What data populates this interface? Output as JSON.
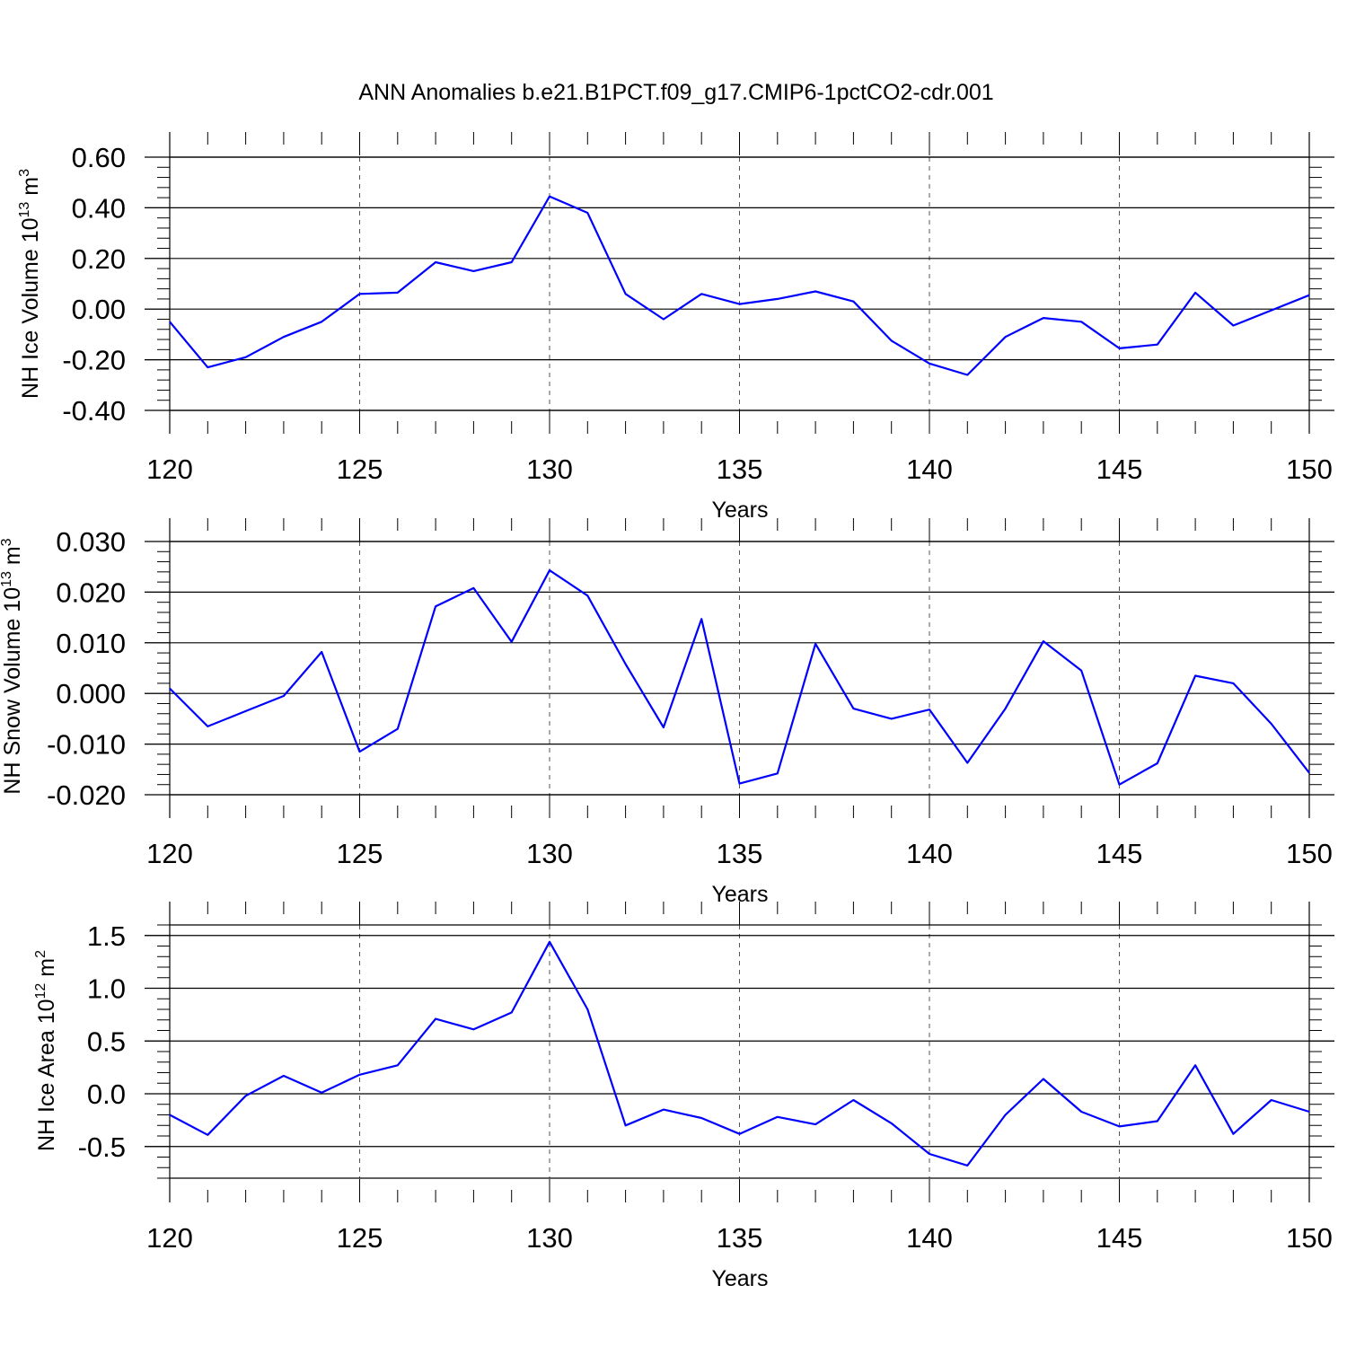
{
  "title": "ANN Anomalies b.e21.B1PCT.f09_g17.CMIP6-1pctCO2-cdr.001",
  "colors": {
    "line": "#0000ff",
    "axis": "#000000",
    "grid": "#555555"
  },
  "chart_data": [
    {
      "type": "line",
      "ylabel_text": "NH Ice Volume 10",
      "ylabel_exp": "13",
      "ylabel_unit": "m",
      "ylabel_unit_exp": "3",
      "xlabel": "Years",
      "xlim": [
        120,
        150
      ],
      "ylim": [
        -0.4,
        0.6
      ],
      "xticks": [
        "120",
        "125",
        "130",
        "135",
        "140",
        "145",
        "150"
      ],
      "yticks": [
        {
          "value": 0.6,
          "label": "0.60"
        },
        {
          "value": 0.4,
          "label": "0.40"
        },
        {
          "value": 0.2,
          "label": "0.20"
        },
        {
          "value": 0.0,
          "label": "0.00"
        },
        {
          "value": -0.2,
          "label": "-0.20"
        },
        {
          "value": -0.4,
          "label": "-0.40"
        }
      ],
      "vgrid": [
        125,
        130,
        135,
        140,
        145
      ],
      "x": [
        120,
        121,
        122,
        123,
        124,
        125,
        126,
        127,
        128,
        129,
        130,
        131,
        132,
        133,
        134,
        135,
        136,
        137,
        138,
        139,
        140,
        141,
        142,
        143,
        144,
        145,
        146,
        147,
        148,
        149,
        150
      ],
      "y": [
        -0.05,
        -0.23,
        -0.19,
        -0.11,
        -0.05,
        0.06,
        0.065,
        0.185,
        0.15,
        0.185,
        0.445,
        0.38,
        0.06,
        -0.04,
        0.06,
        0.02,
        0.04,
        0.07,
        0.03,
        -0.125,
        -0.215,
        -0.26,
        -0.11,
        -0.035,
        -0.05,
        -0.155,
        -0.14,
        0.065,
        -0.065,
        -0.005,
        0.055
      ]
    },
    {
      "type": "line",
      "ylabel_text": "NH Snow Volume 10",
      "ylabel_exp": "13",
      "ylabel_unit": "m",
      "ylabel_unit_exp": "3",
      "xlabel": "Years",
      "xlim": [
        120,
        150
      ],
      "ylim": [
        -0.02,
        0.03
      ],
      "xticks": [
        "120",
        "125",
        "130",
        "135",
        "140",
        "145",
        "150"
      ],
      "yticks": [
        {
          "value": 0.03,
          "label": "0.030"
        },
        {
          "value": 0.02,
          "label": "0.020"
        },
        {
          "value": 0.01,
          "label": "0.010"
        },
        {
          "value": 0.0,
          "label": "0.000"
        },
        {
          "value": -0.01,
          "label": "-0.010"
        },
        {
          "value": -0.02,
          "label": "-0.020"
        }
      ],
      "vgrid": [
        125,
        130,
        135,
        140,
        145
      ],
      "x": [
        120,
        121,
        122,
        123,
        124,
        125,
        126,
        127,
        128,
        129,
        130,
        131,
        132,
        133,
        134,
        135,
        136,
        137,
        138,
        139,
        140,
        141,
        142,
        143,
        144,
        145,
        146,
        147,
        148,
        149,
        150
      ],
      "y": [
        0.001,
        -0.0065,
        -0.0035,
        -0.0005,
        0.0082,
        -0.0115,
        -0.007,
        0.0172,
        0.0208,
        0.0102,
        0.0243,
        0.0193,
        0.0058,
        -0.0067,
        0.0147,
        -0.0178,
        -0.0158,
        0.0098,
        -0.003,
        -0.005,
        -0.0032,
        -0.0137,
        -0.003,
        0.0103,
        0.0045,
        -0.018,
        -0.0138,
        0.0035,
        0.002,
        -0.006,
        -0.0157
      ]
    },
    {
      "type": "line",
      "ylabel_text": "NH Ice Area 10",
      "ylabel_exp": "12",
      "ylabel_unit": "m",
      "ylabel_unit_exp": "2",
      "xlabel": "Years",
      "xlim": [
        120,
        150
      ],
      "ylim": [
        -0.8,
        1.6
      ],
      "xticks": [
        "120",
        "125",
        "130",
        "135",
        "140",
        "145",
        "150"
      ],
      "yticks": [
        {
          "value": 1.5,
          "label": "1.5"
        },
        {
          "value": 1.0,
          "label": "1.0"
        },
        {
          "value": 0.5,
          "label": "0.5"
        },
        {
          "value": 0.0,
          "label": "0.0"
        },
        {
          "value": -0.5,
          "label": "-0.5"
        }
      ],
      "vgrid": [
        125,
        130,
        135,
        140,
        145
      ],
      "x": [
        120,
        121,
        122,
        123,
        124,
        125,
        126,
        127,
        128,
        129,
        130,
        131,
        132,
        133,
        134,
        135,
        136,
        137,
        138,
        139,
        140,
        141,
        142,
        143,
        144,
        145,
        146,
        147,
        148,
        149,
        150
      ],
      "y": [
        -0.2,
        -0.39,
        -0.02,
        0.17,
        0.01,
        0.18,
        0.27,
        0.71,
        0.61,
        0.77,
        1.44,
        0.8,
        -0.3,
        -0.15,
        -0.23,
        -0.38,
        -0.22,
        -0.29,
        -0.06,
        -0.28,
        -0.57,
        -0.68,
        -0.2,
        0.14,
        -0.17,
        -0.31,
        -0.26,
        0.27,
        -0.38,
        -0.06,
        -0.17
      ]
    }
  ]
}
